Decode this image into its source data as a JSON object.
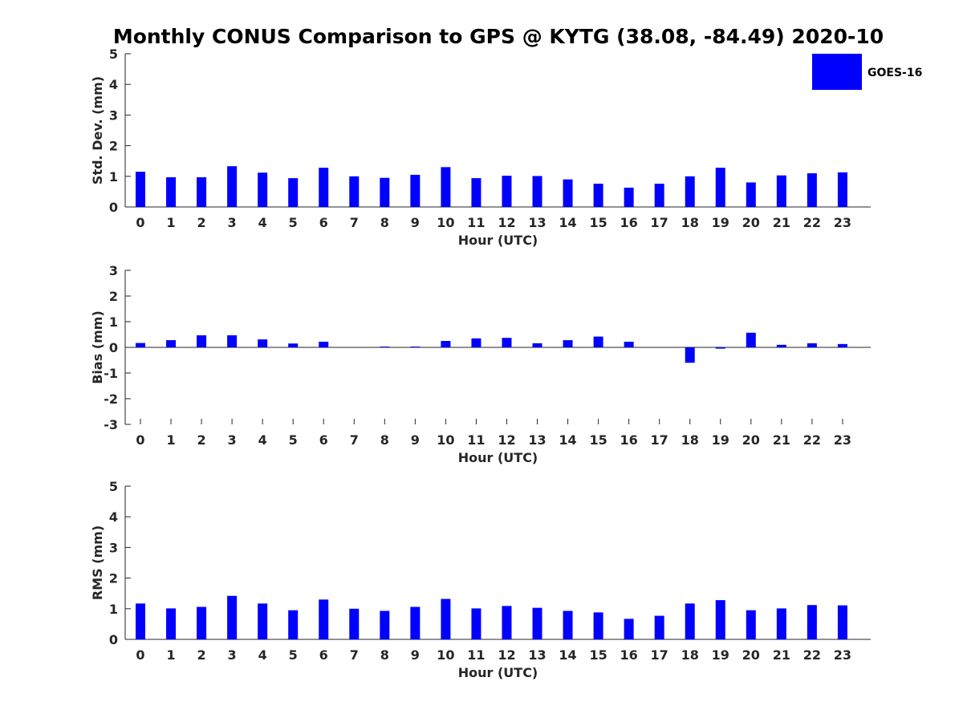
{
  "title": "Monthly CONUS Comparison to GPS @ KYTG (38.08, -84.49) 2020-10",
  "bar_color": "#0000ff",
  "legend": {
    "label": "GOES-16",
    "color": "#0000ff"
  },
  "chart_data": [
    {
      "type": "bar",
      "name": "std-dev",
      "title": "",
      "xlabel": "Hour (UTC)",
      "ylabel": "Std. Dev. (mm)",
      "ylim": [
        0,
        5
      ],
      "yticks": [
        0,
        1,
        2,
        3,
        4,
        5
      ],
      "categories": [
        "0",
        "1",
        "2",
        "3",
        "4",
        "5",
        "6",
        "7",
        "8",
        "9",
        "10",
        "11",
        "12",
        "13",
        "14",
        "15",
        "16",
        "17",
        "18",
        "19",
        "20",
        "21",
        "22",
        "23"
      ],
      "series": [
        {
          "name": "GOES-16",
          "values": [
            1.15,
            0.97,
            0.97,
            1.33,
            1.12,
            0.94,
            1.28,
            1.0,
            0.95,
            1.05,
            1.3,
            0.94,
            1.02,
            1.01,
            0.9,
            0.76,
            0.63,
            0.76,
            1.0,
            1.28,
            0.8,
            1.03,
            1.1,
            1.13
          ]
        }
      ]
    },
    {
      "type": "bar",
      "name": "bias",
      "title": "",
      "xlabel": "Hour (UTC)",
      "ylabel": "Bias (mm)",
      "ylim": [
        -3,
        3
      ],
      "yticks": [
        -3,
        -2,
        -1,
        0,
        1,
        2,
        3
      ],
      "categories": [
        "0",
        "1",
        "2",
        "3",
        "4",
        "5",
        "6",
        "7",
        "8",
        "9",
        "10",
        "11",
        "12",
        "13",
        "14",
        "15",
        "16",
        "17",
        "18",
        "19",
        "20",
        "21",
        "22",
        "23"
      ],
      "series": [
        {
          "name": "GOES-16",
          "values": [
            0.17,
            0.28,
            0.47,
            0.47,
            0.31,
            0.15,
            0.22,
            0.0,
            0.03,
            0.03,
            0.25,
            0.35,
            0.37,
            0.16,
            0.28,
            0.42,
            0.22,
            0.0,
            -0.6,
            -0.05,
            0.57,
            0.1,
            0.16,
            0.13
          ]
        }
      ]
    },
    {
      "type": "bar",
      "name": "rms",
      "title": "",
      "xlabel": "Hour (UTC)",
      "ylabel": "RMS (mm)",
      "ylim": [
        0,
        5
      ],
      "yticks": [
        0,
        1,
        2,
        3,
        4,
        5
      ],
      "categories": [
        "0",
        "1",
        "2",
        "3",
        "4",
        "5",
        "6",
        "7",
        "8",
        "9",
        "10",
        "11",
        "12",
        "13",
        "14",
        "15",
        "16",
        "17",
        "18",
        "19",
        "20",
        "21",
        "22",
        "23"
      ],
      "series": [
        {
          "name": "GOES-16",
          "values": [
            1.17,
            1.01,
            1.06,
            1.42,
            1.17,
            0.95,
            1.3,
            1.0,
            0.93,
            1.06,
            1.32,
            1.01,
            1.09,
            1.03,
            0.93,
            0.88,
            0.67,
            0.77,
            1.17,
            1.28,
            0.95,
            1.01,
            1.12,
            1.11
          ]
        }
      ]
    }
  ]
}
